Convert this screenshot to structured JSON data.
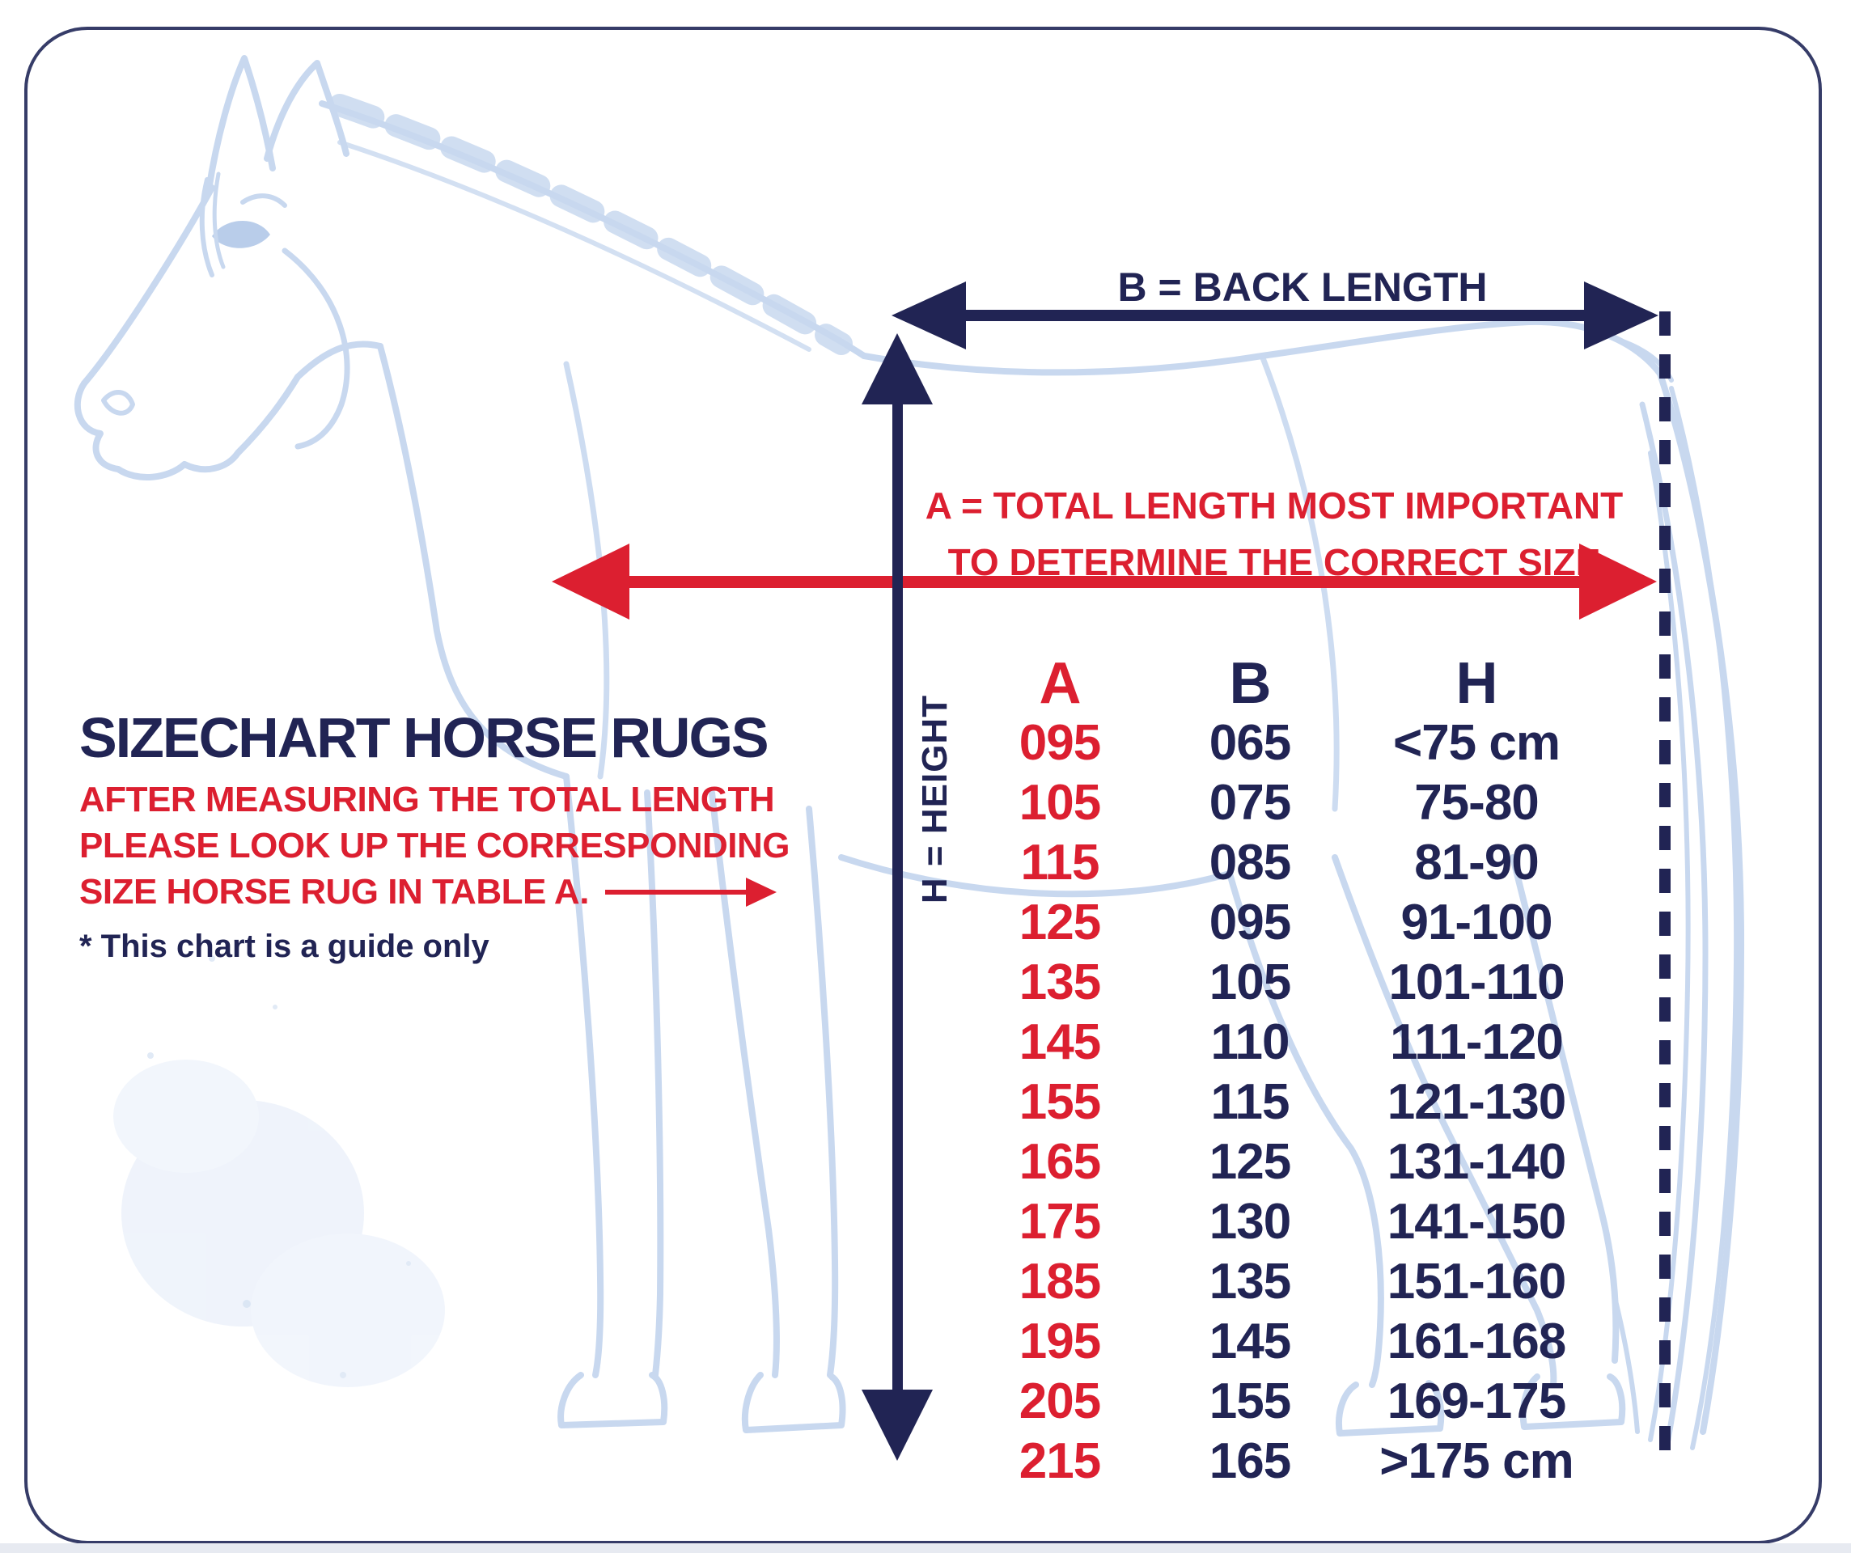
{
  "colors": {
    "navy": "#212454",
    "red": "#dc1f30",
    "horse_outline": "#c8d8ef",
    "frame_border": "#363c68",
    "page_bg": "#ffffff"
  },
  "diagram": {
    "b_arrow_label": "B = BACK LENGTH",
    "a_arrow_label_line1": "A = TOTAL LENGTH MOST IMPORTANT",
    "a_arrow_label_line2": "TO DETERMINE THE CORRECT SIZE",
    "h_arrow_label": "H = HEIGHT"
  },
  "info_block": {
    "title": "SIZECHART HORSE RUGS",
    "instruction_line1": "AFTER MEASURING THE TOTAL LENGTH",
    "instruction_line2": "PLEASE LOOK UP THE CORRESPONDING",
    "instruction_line3": "SIZE HORSE RUG IN TABLE A.",
    "footnote": "* This chart is a guide only"
  },
  "chart_data": {
    "type": "table",
    "columns": [
      "A",
      "B",
      "H"
    ],
    "rows": [
      [
        "095",
        "065",
        "<75 cm"
      ],
      [
        "105",
        "075",
        "75-80"
      ],
      [
        "115",
        "085",
        "81-90"
      ],
      [
        "125",
        "095",
        "91-100"
      ],
      [
        "135",
        "105",
        "101-110"
      ],
      [
        "145",
        "110",
        "111-120"
      ],
      [
        "155",
        "115",
        "121-130"
      ],
      [
        "165",
        "125",
        "131-140"
      ],
      [
        "175",
        "130",
        "141-150"
      ],
      [
        "185",
        "135",
        "151-160"
      ],
      [
        "195",
        "145",
        "161-168"
      ],
      [
        "205",
        "155",
        "169-175"
      ],
      [
        "215",
        "165",
        ">175 cm"
      ]
    ]
  }
}
